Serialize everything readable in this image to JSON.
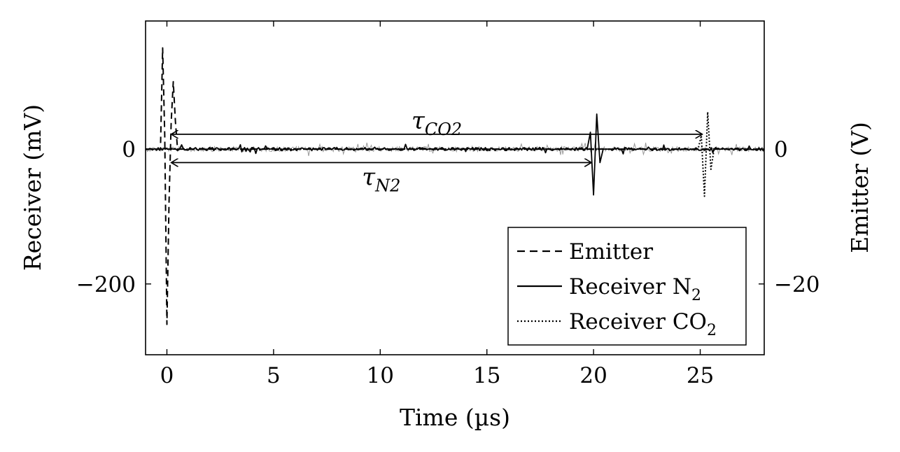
{
  "chart_data": {
    "type": "line",
    "xlabel": "Time (µs)",
    "ylabel_left": "Receiver (mV)",
    "ylabel_right": "Emitter (V)",
    "xlim": [
      -1,
      28
    ],
    "ylim_left": [
      -305,
      190
    ],
    "ylim_right": [
      -30.5,
      19
    ],
    "x_ticks": [
      0,
      5,
      10,
      15,
      20,
      25
    ],
    "x_tick_labels": [
      "0",
      "5",
      "10",
      "15",
      "20",
      "25"
    ],
    "y_left_ticks": [
      0,
      -200
    ],
    "y_left_tick_labels": [
      "0",
      "−200"
    ],
    "y_right_ticks": [
      0,
      -20
    ],
    "y_right_tick_labels": [
      "0",
      "−20"
    ],
    "grid": false,
    "legend_position": "bottom-right",
    "legend": [
      {
        "label": "Emitter",
        "sub": "",
        "style": "dashed"
      },
      {
        "label": "Receiver N",
        "sub": "2",
        "style": "solid"
      },
      {
        "label": "Receiver CO",
        "sub": "2",
        "style": "dotted"
      }
    ],
    "series": [
      {
        "name": "Emitter",
        "axis": "right",
        "style": "dashed",
        "x": [
          -1,
          -0.3,
          -0.2,
          -0.1,
          0.0,
          0.1,
          0.2,
          0.3,
          0.4,
          0.5,
          0.6,
          28
        ],
        "y": [
          0,
          0,
          15,
          2,
          -26,
          -8,
          4,
          10,
          4,
          0,
          0,
          0
        ]
      },
      {
        "name": "Receiver N2",
        "axis": "left",
        "style": "solid",
        "x": [
          -1,
          0,
          0.1,
          19.7,
          19.85,
          20.0,
          20.15,
          20.3,
          20.45,
          20.6,
          20.8,
          28
        ],
        "y": [
          0,
          0,
          0,
          0,
          25,
          -68,
          52,
          -20,
          0,
          0,
          0,
          0
        ]
      },
      {
        "name": "Receiver CO2",
        "axis": "left",
        "style": "dotted",
        "x": [
          -1,
          24.9,
          25.05,
          25.2,
          25.35,
          25.5,
          25.65,
          25.8,
          26.0,
          28
        ],
        "y": [
          0,
          0,
          20,
          -70,
          55,
          -30,
          0,
          0,
          0,
          0
        ]
      }
    ],
    "annotations": [
      {
        "label": "τ",
        "sub": "CO2",
        "x_start": 0.2,
        "x_end": 25.1,
        "y": 22
      },
      {
        "label": "τ",
        "sub": "N2",
        "x_start": 0.2,
        "x_end": 19.9,
        "y": -20
      }
    ]
  }
}
